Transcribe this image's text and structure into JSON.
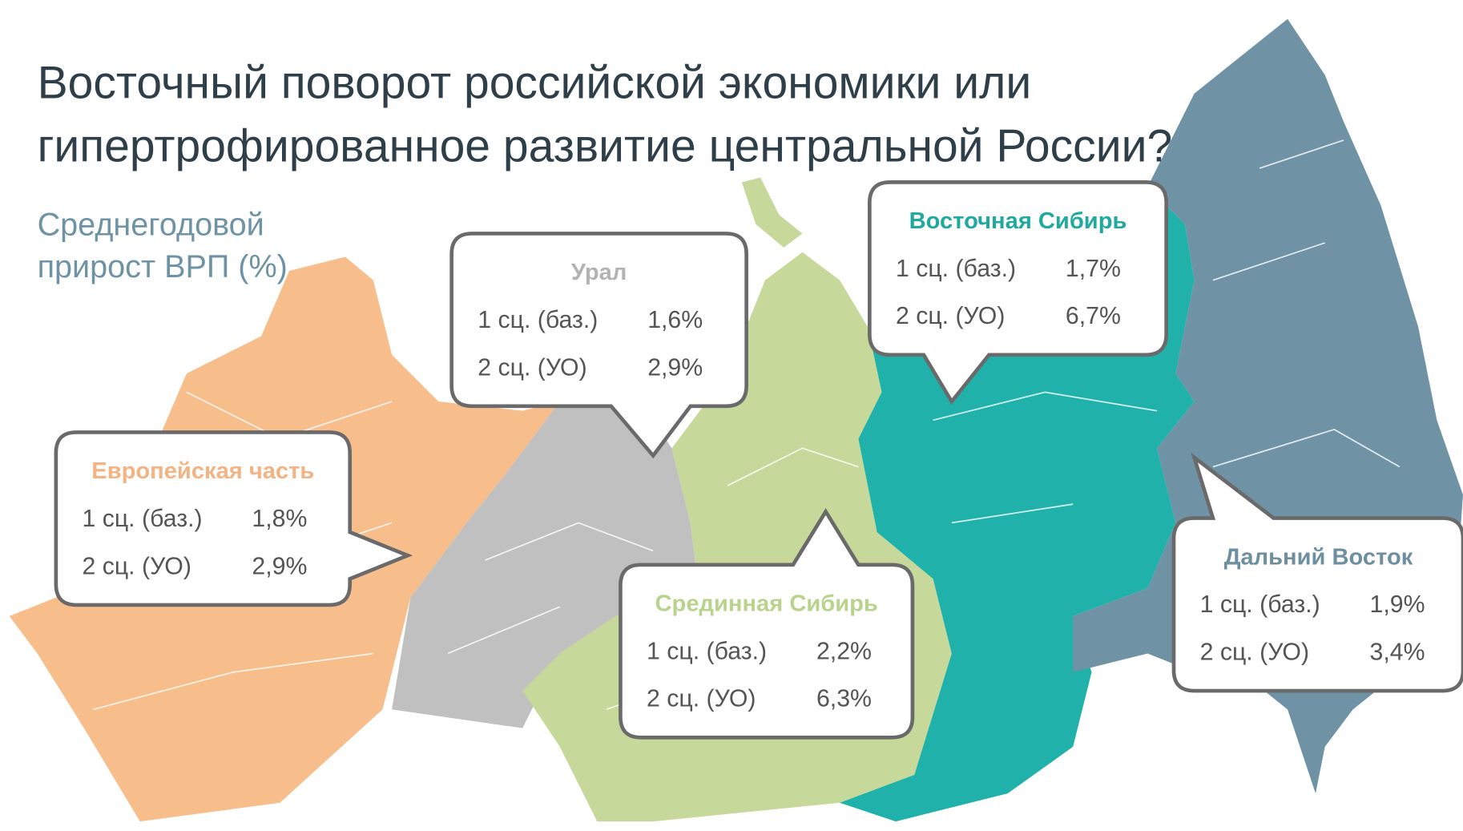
{
  "header": {
    "title": [
      "Восточный поворот российской экономики или",
      "гипертрофированное развитие центральной России?"
    ],
    "subtitle": [
      "Среднегодовой",
      "прирост ВРП (%)"
    ]
  },
  "regions": [
    {
      "name": "Урал",
      "color": "#b3b3b3",
      "rows": [
        {
          "label": "1 сц. (баз.)",
          "value": "1,6%"
        },
        {
          "label": "2 сц. (УО)",
          "value": "2,9%"
        }
      ]
    },
    {
      "name": "Европейская часть",
      "color": "#f4b383",
      "rows": [
        {
          "label": "1 сц. (баз.)",
          "value": "1,8%"
        },
        {
          "label": "2 сц. (УО)",
          "value": "2,9%"
        }
      ]
    },
    {
      "name": "Срединная Сибирь",
      "color": "#b9d38c",
      "rows": [
        {
          "label": "1 сц. (баз.)",
          "value": "2,2%"
        },
        {
          "label": "2 сц. (УО)",
          "value": "6,3%"
        }
      ]
    },
    {
      "name": "Восточная Сибирь",
      "color": "#1fa99f",
      "rows": [
        {
          "label": "1 сц. (баз.)",
          "value": "1,7%"
        },
        {
          "label": "2 сц. (УО)",
          "value": "6,7%"
        }
      ]
    },
    {
      "name": "Дальний Восток",
      "color": "#6e8fa0",
      "rows": [
        {
          "label": "1 сц. (баз.)",
          "value": "1,9%"
        },
        {
          "label": "2 сц. (УО)",
          "value": "3,4%"
        }
      ]
    }
  ]
}
